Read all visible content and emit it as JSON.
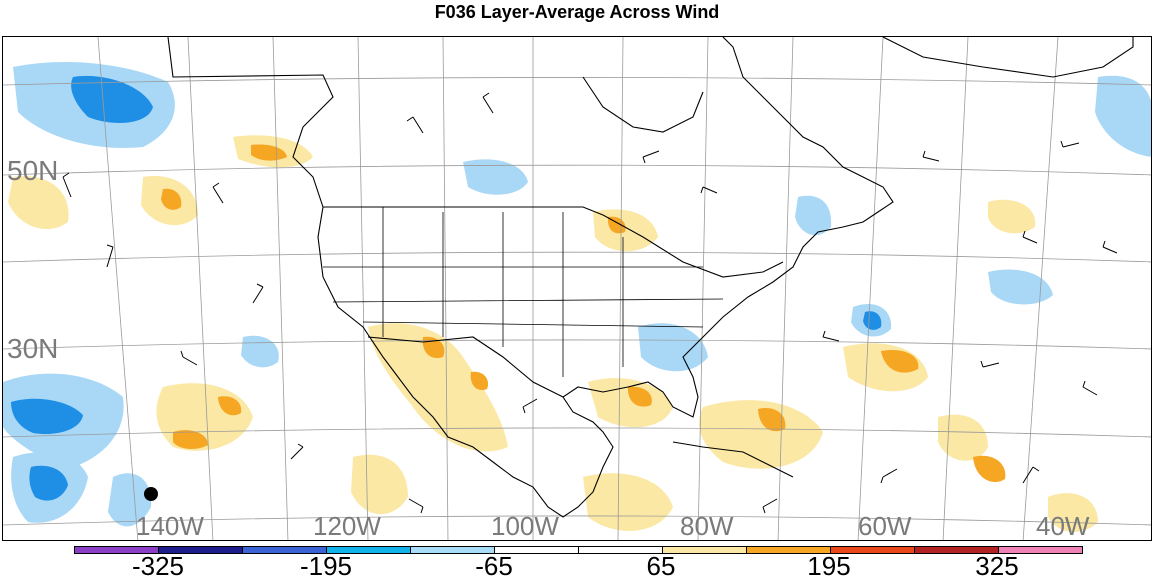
{
  "title": "F036 Layer-Average Across Wind",
  "map": {
    "projection": "Lambert Conformal (North America)",
    "lat_labels": [
      "50N",
      "30N"
    ],
    "lon_labels": [
      "140W",
      "120W",
      "100W",
      "80W",
      "60W",
      "40W"
    ],
    "shading_colors": {
      "strong_neg": "#1f8fe6",
      "neg": "#a9d8f7",
      "pos": "#fbe8a4",
      "strong_pos": "#f5a623"
    },
    "marker": "station-dot"
  },
  "colorbar": {
    "colors": [
      "#8b3fc6",
      "#1c1c8c",
      "#3b63d6",
      "#12b3ea",
      "#a8dcf8",
      "#ffffff",
      "#ffffff",
      "#fbe8a4",
      "#f5a623",
      "#e8481c",
      "#b22222",
      "#ee82b6"
    ],
    "labels": [
      "-325",
      "-195",
      "-65",
      "65",
      "195",
      "325"
    ]
  }
}
